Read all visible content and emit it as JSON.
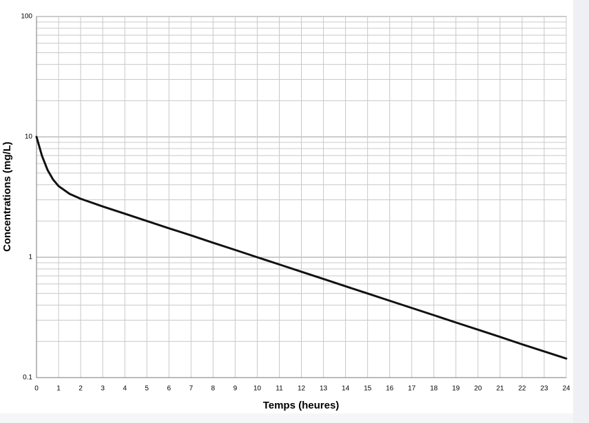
{
  "chart_data": {
    "type": "line",
    "x_label": "Temps (heures)",
    "y_label": "Concentrations (mg/L)",
    "x": [
      0,
      0.25,
      0.5,
      0.75,
      1,
      1.5,
      2,
      3,
      4,
      5,
      6,
      7,
      8,
      9,
      10,
      11,
      12,
      13,
      14,
      15,
      16,
      17,
      18,
      19,
      20,
      21,
      22,
      23,
      24
    ],
    "values": [
      10,
      6.94,
      5.31,
      4.42,
      3.9,
      3.36,
      3.06,
      2.64,
      2.3,
      2.0,
      1.74,
      1.52,
      1.32,
      1.15,
      1.0,
      0.871,
      0.758,
      0.66,
      0.574,
      0.5,
      0.435,
      0.379,
      0.33,
      0.287,
      0.25,
      0.218,
      0.189,
      0.165,
      0.144
    ],
    "color": "#111111",
    "xlim": [
      0,
      24
    ],
    "xticks": [
      0,
      1,
      2,
      3,
      4,
      5,
      6,
      7,
      8,
      9,
      10,
      11,
      12,
      13,
      14,
      15,
      16,
      17,
      18,
      19,
      20,
      21,
      22,
      23,
      24
    ],
    "ylim": [
      0.1,
      100
    ],
    "yticks": [
      0.1,
      1,
      10,
      100
    ],
    "minor_yticks": [
      0.2,
      0.3,
      0.4,
      0.5,
      0.6,
      0.7,
      0.8,
      0.9,
      2,
      3,
      4,
      5,
      6,
      7,
      8,
      9,
      20,
      30,
      40,
      50,
      60,
      70,
      80,
      90
    ],
    "y_log": true,
    "grid": true
  }
}
